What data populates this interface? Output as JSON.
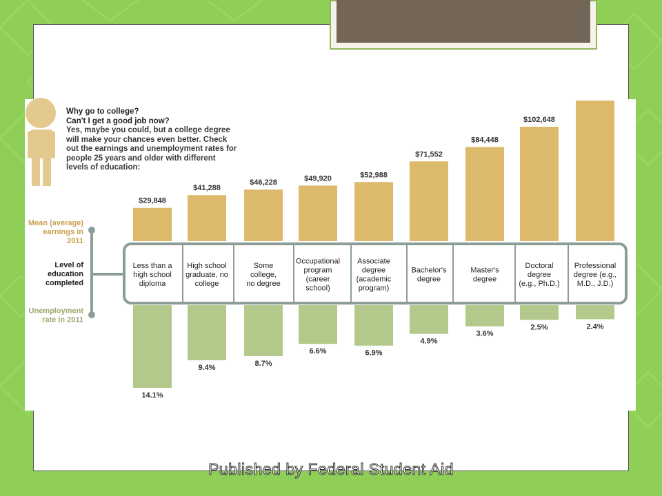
{
  "intro": {
    "question1": "Why go to college?",
    "question2": "Can't I get a good job now?",
    "body": "Yes, maybe you could, but a college degree will make your chances even better. Check out the earnings and unemployment rates for people 25 years and older with different levels of education:"
  },
  "footer": "Published by Federal Student Aid",
  "colors": {
    "background": "#8fcf57",
    "earnings_bar": "#dcb96b",
    "unemployment_bar": "#b3c98b",
    "frame": "#8a9e97",
    "earnings_label": "#c9a24f",
    "unemployment_label": "#9aaa6e",
    "title_box": "#736656"
  },
  "chart_data": {
    "type": "bar",
    "row_labels": {
      "earnings": "Mean (average) earnings in 2011",
      "education": "Level of education completed",
      "unemployment": "Unemployment rate in 2011"
    },
    "categories": [
      "Less than a high school diploma",
      "High school graduate, no college",
      "Some college, no degree",
      "Occupational program (career school)",
      "Associate degree (academic program)",
      "Bachelor's degree",
      "Master's degree",
      "Doctoral degree (e.g., Ph.D.)",
      "Professional degree (e.g., M.D., J.D.)"
    ],
    "category_lines": [
      [
        "Less than a",
        "high school",
        "diploma"
      ],
      [
        "High school",
        "graduate, no",
        "college"
      ],
      [
        "Some",
        "college,",
        "no degree"
      ],
      [
        "Occupational",
        "program",
        "(career",
        "school)"
      ],
      [
        "Associate",
        "degree",
        "(academic",
        "program)"
      ],
      [
        "Bachelor's",
        "degree"
      ],
      [
        "Master's",
        "degree"
      ],
      [
        "Doctoral",
        "degree",
        "(e.g., Ph.D.)"
      ],
      [
        "Professional",
        "degree (e.g.,",
        "M.D., J.D.)"
      ]
    ],
    "series": [
      {
        "name": "Mean (average) earnings in 2011",
        "values": [
          29848,
          41288,
          46228,
          49920,
          52988,
          71552,
          84448,
          102648,
          null
        ],
        "labels": [
          "$29,848",
          "$41,288",
          "$46,228",
          "$49,920",
          "$52,988",
          "$71,552",
          "$84,448",
          "$102,648",
          ""
        ]
      },
      {
        "name": "Unemployment rate in 2011",
        "values": [
          14.1,
          9.4,
          8.7,
          6.6,
          6.9,
          4.9,
          3.6,
          2.5,
          2.4
        ],
        "labels": [
          "14.1%",
          "9.4%",
          "8.7%",
          "6.6%",
          "6.9%",
          "4.9%",
          "3.6%",
          "2.5%",
          "2.4%"
        ]
      }
    ]
  }
}
